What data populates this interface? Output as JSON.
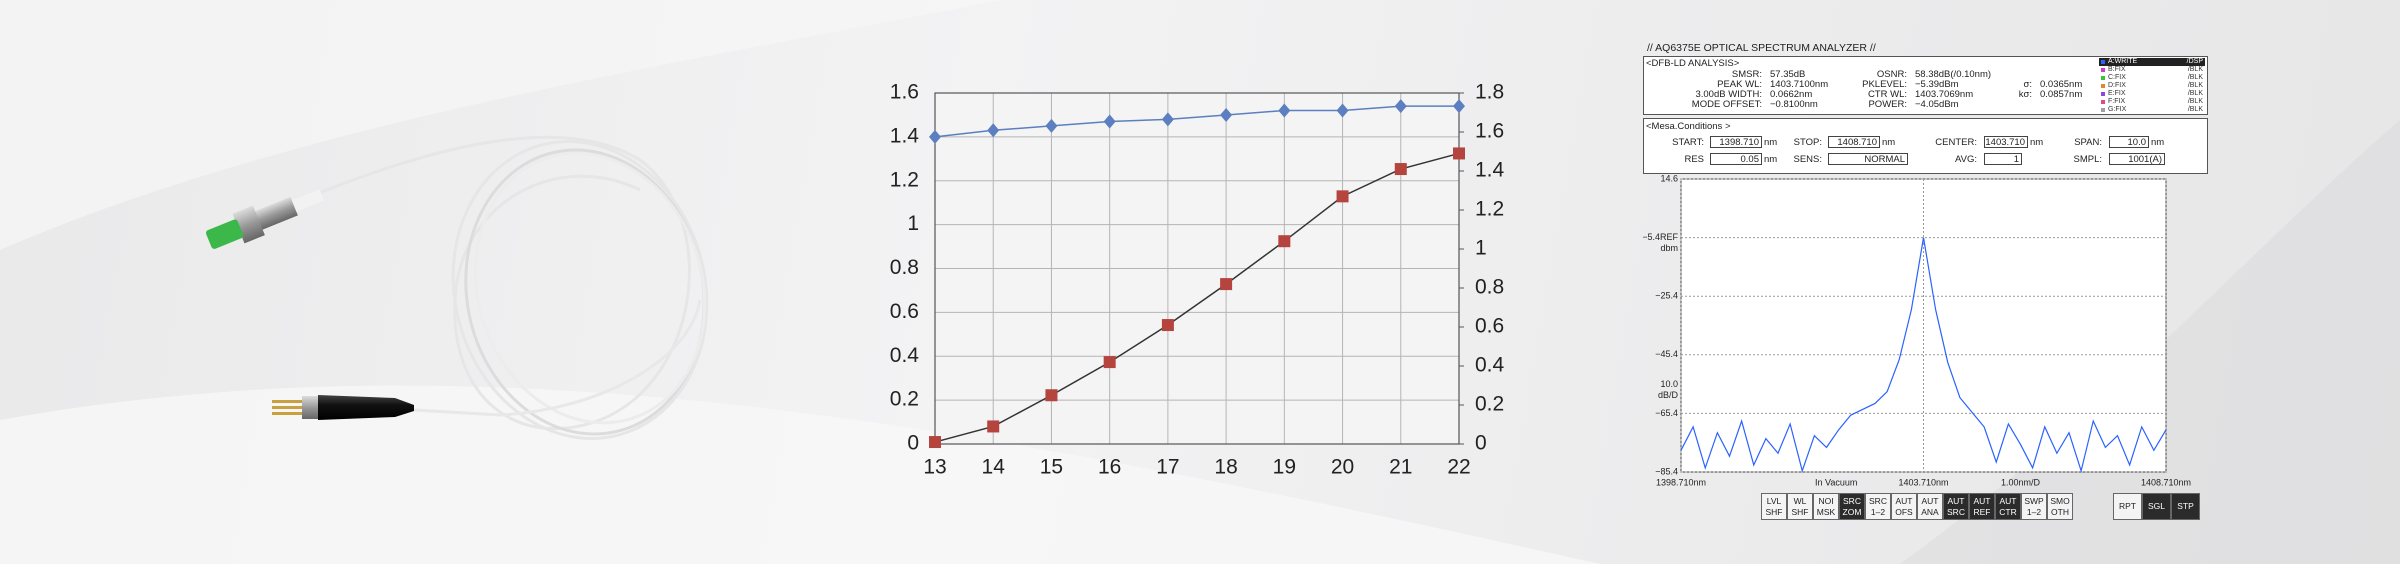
{
  "chart_data": [
    {
      "type": "line",
      "x": [
        13,
        14,
        15,
        16,
        17,
        18,
        19,
        20,
        21,
        22
      ],
      "xlim": [
        13,
        22
      ],
      "xticks": [
        13,
        14,
        15,
        16,
        17,
        18,
        19,
        20,
        21,
        22
      ],
      "ylim": [
        0,
        1.6
      ],
      "yticks": [
        0,
        0.2,
        0.4,
        0.6,
        0.8,
        1,
        1.2,
        1.4,
        1.6
      ],
      "y2lim": [
        0,
        1.8
      ],
      "y2ticks": [
        0,
        0.2,
        0.4,
        0.6,
        0.8,
        1,
        1.2,
        1.4,
        1.6,
        1.8
      ],
      "grid": true,
      "series": [
        {
          "color": "#5b7fc0",
          "marker": "diamond",
          "values": [
            1.4,
            1.43,
            1.45,
            1.47,
            1.48,
            1.5,
            1.52,
            1.52,
            1.54,
            1.54
          ]
        },
        {
          "color": "#b5443f",
          "marker": "square",
          "axis": "y2",
          "values": [
            0.01,
            0.09,
            0.25,
            0.42,
            0.61,
            0.82,
            1.04,
            1.27,
            1.41,
            1.49
          ]
        }
      ]
    },
    {
      "type": "spectrum",
      "x": [
        1398.71,
        1398.96,
        1399.21,
        1399.46,
        1399.71,
        1399.96,
        1400.21,
        1400.46,
        1400.71,
        1400.96,
        1401.21,
        1401.46,
        1401.71,
        1401.96,
        1402.21,
        1402.46,
        1402.71,
        1402.96,
        1403.21,
        1403.46,
        1403.71,
        1403.96,
        1404.21,
        1404.46,
        1404.71,
        1404.96,
        1405.21,
        1405.46,
        1405.71,
        1405.96,
        1406.21,
        1406.46,
        1406.71,
        1406.96,
        1407.21,
        1407.46,
        1407.71,
        1407.96,
        1408.21,
        1408.46,
        1408.71
      ],
      "xlim": [
        1398.71,
        1408.71
      ],
      "xticks": [
        {
          "value": 1398.71,
          "label": "1398.710nm"
        },
        {
          "value": 1403.71,
          "label": "1403.710nm"
        },
        {
          "value": 1408.71,
          "label": "1408.710nm"
        }
      ],
      "ylim": [
        -85.4,
        14.6
      ],
      "yticks": [
        14.6,
        {
          "value": -5.4,
          "label": "−5.4REF"
        },
        {
          "value": -25.4,
          "label": "−25.4"
        },
        {
          "value": -45.4,
          "label": "−45.4"
        },
        {
          "value": -65.4,
          "label": "−65.4"
        },
        {
          "value": -85.4,
          "label": "−85.4"
        }
      ],
      "y_unit": "dbm",
      "scale_label": [
        "10.0",
        "dB/D"
      ],
      "notes": [
        "In Vacuum",
        "1.00nm/D"
      ],
      "grid": true,
      "series": [
        {
          "color": "#2962ff",
          "values": [
            -78,
            -70,
            -84,
            -72,
            -80,
            -68,
            -83,
            -74,
            -79,
            -69,
            -85,
            -73,
            -77,
            -71,
            -66,
            -64,
            -62,
            -58,
            -47,
            -30,
            -5.4,
            -30,
            -48,
            -60,
            -65,
            -70,
            -82,
            -69,
            -76,
            -84,
            -70,
            -79,
            -72,
            -85,
            -68,
            -77,
            -73,
            -83,
            -70,
            -78,
            -71
          ]
        }
      ]
    }
  ],
  "osa": {
    "title": "// AQ6375E OPTICAL SPECTRUM ANALYZER //",
    "analysis": {
      "title": "<DFB-LD ANALYSIS>",
      "rows": [
        [
          [
            "SMSR:",
            "57.35dB"
          ],
          [
            "OSNR:",
            "58.38dB(/0.10nm)"
          ]
        ],
        [
          [
            "PEAK WL:",
            "1403.7100nm"
          ],
          [
            "PKLEVEL:",
            "−5.39dBm"
          ],
          [
            "σ:",
            "0.0365nm"
          ]
        ],
        [
          [
            "3.00dB WIDTH:",
            "0.0662nm"
          ],
          [
            "CTR WL:",
            "1403.7069nm"
          ],
          [
            "kσ:",
            "0.0857nm"
          ]
        ],
        [
          [
            "MODE OFFSET:",
            "−0.8100nm"
          ],
          [
            "POWER:",
            "−4.05dBm"
          ]
        ]
      ]
    },
    "traces": [
      {
        "name": "A:WRITE",
        "state": "/DSP",
        "color": "#2962ff",
        "active": true
      },
      {
        "name": "B:FIX",
        "state": "/BLK",
        "color": "#d23ad2",
        "active": false
      },
      {
        "name": "C:FIX",
        "state": "/BLK",
        "color": "#3ac23a",
        "active": false
      },
      {
        "name": "D:FIX",
        "state": "/BLK",
        "color": "#e08a2a",
        "active": false
      },
      {
        "name": "E:FIX",
        "state": "/BLK",
        "color": "#8a4ad8",
        "active": false
      },
      {
        "name": "F:FIX",
        "state": "/BLK",
        "color": "#e04a8a",
        "active": false
      },
      {
        "name": "G:FIX",
        "state": "/BLK",
        "color": "#a0a0a0",
        "active": false
      }
    ],
    "conditions": {
      "title": "<Mesa.Conditions >",
      "rows": [
        [
          {
            "label": "START:",
            "value": "1398.710",
            "unit": "nm"
          },
          {
            "label": "STOP:",
            "value": "1408.710",
            "unit": "nm"
          },
          {
            "label": "CENTER:",
            "value": "1403.710",
            "unit": "nm"
          },
          {
            "label": "SPAN:",
            "value": "10.0",
            "unit": "nm"
          }
        ],
        [
          {
            "label": "RES",
            "value": "0.05",
            "unit": "nm"
          },
          {
            "label": "SENS:",
            "value": "NORMAL"
          },
          {
            "label": "AVG:",
            "value": "1"
          },
          {
            "label": "SMPL:",
            "value": "1001(A)"
          }
        ]
      ]
    },
    "buttons": [
      {
        "label": [
          "LVL",
          "SHF"
        ],
        "active": false
      },
      {
        "label": [
          "WL",
          "SHF"
        ],
        "active": false
      },
      {
        "label": [
          "NOI",
          "MSK"
        ],
        "active": false
      },
      {
        "label": [
          "SRC",
          "ZOM"
        ],
        "active": true
      },
      {
        "label": [
          "SRC",
          "1–2"
        ],
        "active": false
      },
      {
        "label": [
          "AUT",
          "OFS"
        ],
        "active": false
      },
      {
        "label": [
          "AUT",
          "ANA"
        ],
        "active": false
      },
      {
        "label": [
          "AUT",
          "SRC"
        ],
        "active": true
      },
      {
        "label": [
          "AUT",
          "REF"
        ],
        "active": true
      },
      {
        "label": [
          "AUT",
          "CTR"
        ],
        "active": true
      },
      {
        "label": [
          "SWP",
          "1–2"
        ],
        "active": false
      },
      {
        "label": [
          "SMO",
          "OTH"
        ],
        "active": false
      }
    ],
    "run_buttons": [
      {
        "label": "RPT",
        "active": false
      },
      {
        "label": "SGL",
        "active": true
      },
      {
        "label": "STP",
        "active": true
      }
    ]
  }
}
